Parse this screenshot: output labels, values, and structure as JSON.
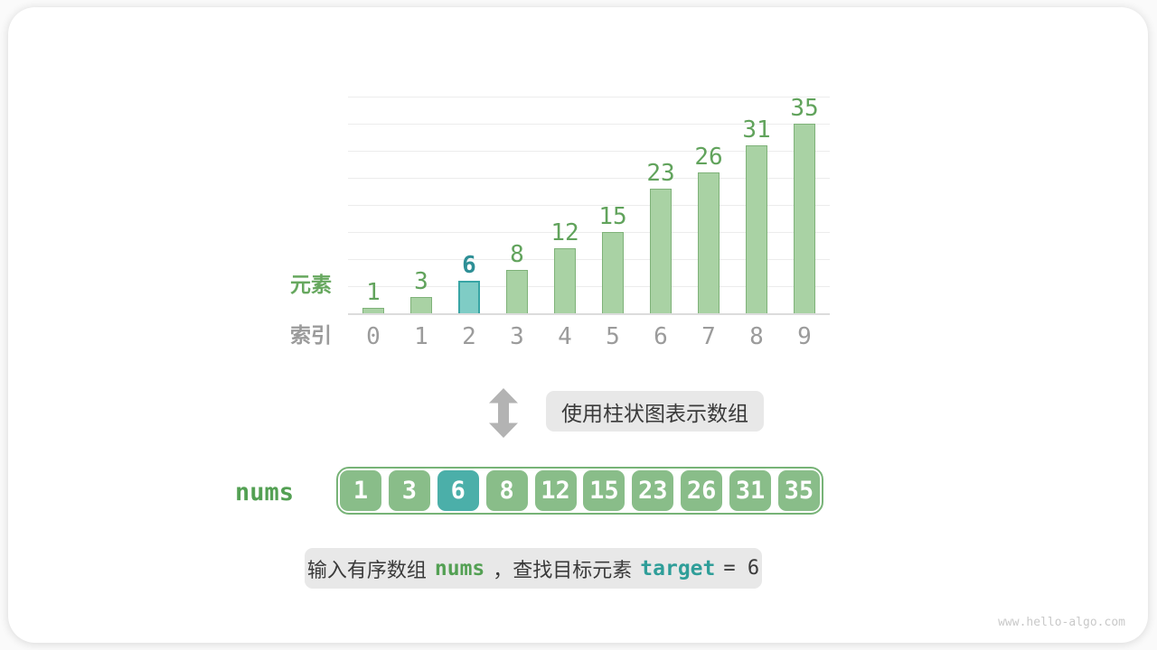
{
  "colors": {
    "bar_fill": "#a9d2a4",
    "bar_border": "#7fb279",
    "bar_hl_fill": "#7fccc5",
    "bar_hl_border": "#38a5a5",
    "value_green": "#61a35c",
    "value_teal": "#2e8f96",
    "index_gray": "#9b9b9b",
    "label_green": "#67a85f",
    "label_gray": "#9b9b9b",
    "grid_line": "#ececec",
    "grid_baseline": "#dcdcdc",
    "arrow_gray": "#b3b3b3",
    "box_bg": "#e8e8e8",
    "text_dark": "#3a3a3a",
    "cell_green": "#89bd89",
    "cell_teal": "#4bafa9",
    "array_border": "#77b377",
    "code_green": "#53a053",
    "code_teal": "#2f9e99",
    "watermark_gray": "#c9c9c9"
  },
  "chart_data": {
    "type": "bar",
    "title": "",
    "categories": [
      "0",
      "1",
      "2",
      "3",
      "4",
      "5",
      "6",
      "7",
      "8",
      "9"
    ],
    "values": [
      1,
      3,
      6,
      8,
      12,
      15,
      23,
      26,
      31,
      35
    ],
    "highlight_index": 2,
    "xlabel": "索引",
    "ylabel": "元素",
    "ylim": [
      0,
      40
    ],
    "gridline_step": 5,
    "grid": true,
    "legend": false
  },
  "transition": {
    "arrow_icon": "up-down-arrow",
    "label": "使用柱状图表示数组"
  },
  "array": {
    "name": "nums",
    "values": [
      "1",
      "3",
      "6",
      "8",
      "12",
      "15",
      "23",
      "26",
      "31",
      "35"
    ],
    "highlight_index": 2
  },
  "caption": {
    "part1": "输入有序数组",
    "code1": "nums",
    "part2": "，查找目标元素",
    "code2": "target",
    "part3": "= 6"
  },
  "watermark": "www.hello-algo.com"
}
